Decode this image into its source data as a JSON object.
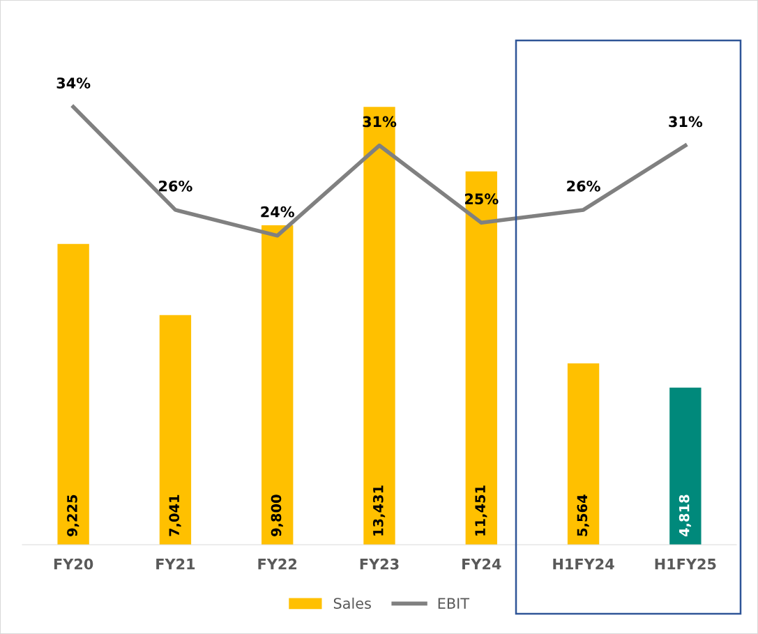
{
  "chart_data": {
    "type": "bar",
    "categories": [
      "FY20",
      "FY21",
      "FY22",
      "FY23",
      "FY24",
      "H1FY24",
      "H1FY25"
    ],
    "series": [
      {
        "name": "Sales",
        "color": "#ffc000",
        "colors": [
          "#ffc000",
          "#ffc000",
          "#ffc000",
          "#ffc000",
          "#ffc000",
          "#ffc000",
          "#00897b"
        ],
        "values": [
          9225,
          7041,
          9800,
          13431,
          11451,
          5564,
          4818
        ],
        "value_labels": [
          "9,225",
          "7,041",
          "9,800",
          "13,431",
          "11,451",
          "5,564",
          "4,818"
        ]
      },
      {
        "name": "EBIT",
        "type": "line",
        "axis": "y2",
        "color": "#808080",
        "values": [
          34,
          26,
          24,
          31,
          25,
          26,
          31
        ],
        "value_labels": [
          "34%",
          "26%",
          "24%",
          "31%",
          "25%",
          "26%",
          "31%"
        ]
      }
    ],
    "tick_labels": "x",
    "grid": false,
    "legend": "bottom",
    "marker": "none",
    "line_style": "solid"
  }
}
